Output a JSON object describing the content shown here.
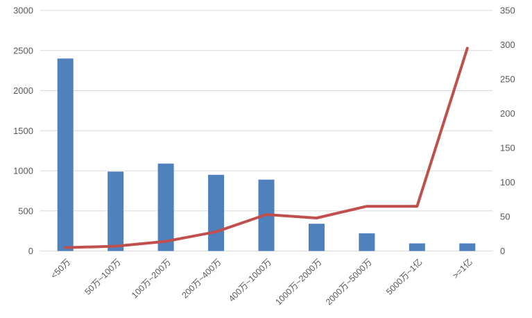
{
  "chart_data": {
    "type": "bar",
    "subtype": "combo-bar-line",
    "title": "",
    "legend": "none",
    "grid": "horizontal",
    "categories": [
      "<50万",
      "50万~100万",
      "100万~200万",
      "200万~400万",
      "400万~1000万",
      "1000万~2000万",
      "2000万~5000万",
      "5000万~1亿",
      ">=1亿"
    ],
    "series": [
      {
        "id": "bar-series",
        "type": "bar",
        "axis": "left",
        "color": "#4F81BD",
        "values": [
          2400,
          990,
          1090,
          950,
          890,
          340,
          220,
          95,
          95
        ]
      },
      {
        "id": "line-series",
        "type": "line",
        "axis": "right",
        "color": "#C0504D",
        "values": [
          5,
          7,
          14,
          28,
          53,
          48,
          65,
          65,
          295
        ]
      }
    ],
    "left_axis": {
      "min": 0,
      "max": 3000,
      "step": 500,
      "tick_labels": [
        "0",
        "500",
        "1000",
        "1500",
        "2000",
        "2500",
        "3000"
      ]
    },
    "right_axis": {
      "min": 0,
      "max": 350,
      "step": 50,
      "tick_labels": [
        "0",
        "50",
        "100",
        "150",
        "200",
        "250",
        "300",
        "350"
      ]
    }
  },
  "styles": {
    "bar_color": "#4F81BD",
    "line_color": "#C0504D",
    "grid_color": "#D9D9D9",
    "tick_text_color": "#595959",
    "background_color": "#FFFFFF"
  }
}
